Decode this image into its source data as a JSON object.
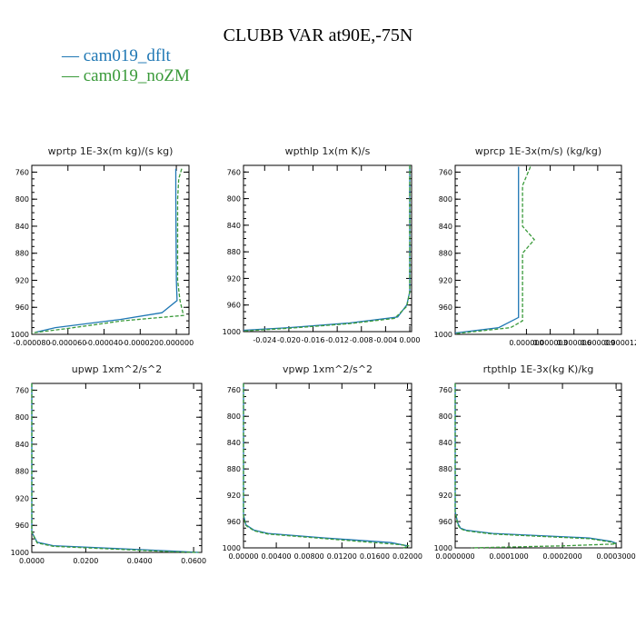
{
  "page": {
    "title": "CLUBB VAR at90E,-75N",
    "legend": [
      {
        "label": "cam019_dflt",
        "color": "#1f77b4",
        "dash": "solid"
      },
      {
        "label": "cam019_noZM",
        "color": "#3a9a3a",
        "dash": "dashed"
      }
    ]
  },
  "chart_data": [
    {
      "type": "line",
      "title": "wprtp  1E-3x(m kg)/(s kg)",
      "ylim": [
        1000,
        750
      ],
      "xlim": [
        -8e-05,
        7e-06
      ],
      "yticks": [
        "760",
        "800",
        "840",
        "880",
        "920",
        "960",
        "1000"
      ],
      "xticks": [
        "-0.000080",
        "-0.000060",
        "-0.000040",
        "-0.000020",
        "0.000000"
      ],
      "series": [
        {
          "name": "cam019_dflt",
          "x": [
            -3e-07,
            -3e-07,
            0.0,
            4e-07,
            -8e-06,
            -3.1e-05,
            -6.7e-05,
            -7.8e-05
          ],
          "y": [
            755,
            800,
            920,
            950,
            968,
            978,
            990,
            997
          ]
        },
        {
          "name": "cam019_noZM",
          "x": [
            3e-06,
            1.3e-06,
            7e-07,
            7e-07,
            2e-06,
            4e-06,
            -3e-05,
            -4.3e-05,
            -6.2e-05,
            -8e-05
          ],
          "y": [
            755,
            770,
            800,
            920,
            950,
            972,
            980,
            985,
            992,
            998
          ]
        }
      ]
    },
    {
      "type": "line",
      "title": "wpthlp  1x(m K)/s",
      "ylim": [
        1000,
        750
      ],
      "xlim": [
        -0.0275,
        0.0003
      ],
      "yticks": [
        "760",
        "800",
        "840",
        "880",
        "920",
        "960",
        "1000"
      ],
      "xticks": [
        "-0.024",
        "-0.020",
        "-0.016",
        "-0.012",
        "-0.008",
        "-0.004",
        "0.000"
      ],
      "series": [
        {
          "name": "cam019_dflt",
          "x": [
            0.0,
            0.0,
            -0.0005,
            -0.002,
            -0.01,
            -0.02,
            -0.0275
          ],
          "y": [
            750,
            940,
            960,
            978,
            987,
            994,
            998
          ]
        },
        {
          "name": "cam019_noZM",
          "x": [
            0.0,
            0.0,
            -0.0005,
            -0.0025,
            -0.01,
            -0.02,
            -0.0275
          ],
          "y": [
            750,
            940,
            962,
            980,
            988,
            995,
            999
          ]
        }
      ]
    },
    {
      "type": "line",
      "title": "wprcp  1E-3x(m/s) (kg/kg)",
      "ylim": [
        1000,
        750
      ],
      "xlim": [
        -9e-07,
        1.2e-06
      ],
      "yticks": [
        "760",
        "800",
        "840",
        "880",
        "920",
        "960",
        "1000"
      ],
      "xticks": [
        "0.000000",
        "0.000003",
        "0.000006",
        "0.000009",
        "0.000012"
      ],
      "series": [
        {
          "name": "cam019_dflt",
          "x": [
            -1e-07,
            -1e-07,
            -1e-07,
            -1e-07,
            -3.5e-07,
            -9e-07
          ],
          "y": [
            752,
            800,
            900,
            975,
            990,
            998
          ]
        },
        {
          "name": "cam019_noZM",
          "x": [
            5e-08,
            -5e-08,
            -5e-08,
            1e-07,
            -5e-08,
            -5e-08,
            -2e-07,
            -9e-07
          ],
          "y": [
            752,
            780,
            840,
            860,
            880,
            980,
            990,
            999
          ]
        }
      ]
    },
    {
      "type": "line",
      "title": "upwp  1xm^2/s^2",
      "ylim": [
        1000,
        750
      ],
      "xlim": [
        0,
        0.063
      ],
      "yticks": [
        "760",
        "800",
        "840",
        "880",
        "920",
        "960",
        "1000"
      ],
      "xticks": [
        "0.0000",
        "0.0200",
        "0.0400",
        "0.0600"
      ],
      "series": [
        {
          "name": "cam019_dflt",
          "x": [
            0.0,
            0.0,
            0.002,
            0.008,
            0.03,
            0.052,
            0.062
          ],
          "y": [
            750,
            970,
            985,
            990,
            994,
            998,
            1000
          ]
        },
        {
          "name": "cam019_noZM",
          "x": [
            0.0,
            0.0,
            0.002,
            0.008,
            0.03,
            0.052,
            0.062
          ],
          "y": [
            750,
            970,
            986,
            991,
            995,
            999,
            1000
          ]
        }
      ]
    },
    {
      "type": "line",
      "title": "vpwp  1xm^2/s^2",
      "ylim": [
        1000,
        750
      ],
      "xlim": [
        0,
        0.0205
      ],
      "yticks": [
        "760",
        "800",
        "840",
        "880",
        "920",
        "960",
        "1000"
      ],
      "xticks": [
        "0.00000",
        "0.00400",
        "0.00800",
        "0.01200",
        "0.01600",
        "0.02000"
      ],
      "series": [
        {
          "name": "cam019_dflt",
          "x": [
            0.0,
            0.0,
            0.0003,
            0.0013,
            0.003,
            0.01,
            0.018,
            0.02
          ],
          "y": [
            750,
            950,
            965,
            973,
            978,
            985,
            992,
            997
          ]
        },
        {
          "name": "cam019_noZM",
          "x": [
            0.0,
            0.0,
            0.0003,
            0.0013,
            0.003,
            0.01,
            0.019,
            0.0202,
            0.0195
          ],
          "y": [
            750,
            952,
            966,
            974,
            979,
            986,
            995,
            997,
            1000
          ]
        }
      ]
    },
    {
      "type": "line",
      "title": "rtpthlp  1E-3x(kg K)/kg",
      "ylim": [
        1000,
        750
      ],
      "xlim": [
        0,
        0.00031
      ],
      "yticks": [
        "760",
        "800",
        "840",
        "880",
        "920",
        "960",
        "1000"
      ],
      "xticks": [
        "0.0000000",
        "0.0001000",
        "0.0002000",
        "0.0003000"
      ],
      "series": [
        {
          "name": "cam019_dflt",
          "x": [
            0.0,
            0.0,
            5e-06,
            1e-05,
            2e-05,
            7e-05,
            0.00025,
            0.00029,
            0.0003
          ],
          "y": [
            750,
            945,
            963,
            970,
            973,
            978,
            985,
            990,
            993
          ]
        },
        {
          "name": "cam019_noZM",
          "x": [
            0.0,
            0.0,
            5e-06,
            1e-05,
            2e-05,
            7e-05,
            0.00025,
            0.00029,
            0.0003,
            0.0002,
            8e-05,
            3e-05
          ],
          "y": [
            750,
            945,
            965,
            971,
            974,
            979,
            986,
            991,
            994,
            997,
            999,
            1000
          ]
        }
      ]
    }
  ]
}
